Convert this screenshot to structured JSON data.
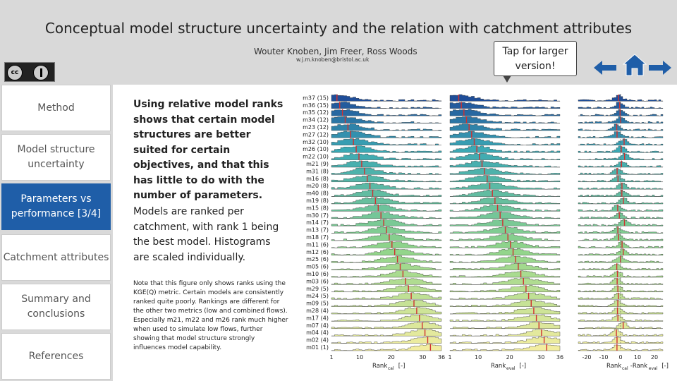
{
  "title": "Conceptual model structure uncertainty and the relation with catchment attributes",
  "authors": "Wouter Knoben, Jim Freer, Ross Woods",
  "email": "w.j.m.knoben@bristol.ac.uk",
  "license_badge": "cc",
  "tap_label": "Tap for larger version!",
  "nav": {
    "left_icon": "arrow-left-icon",
    "home_icon": "home-icon",
    "right_icon": "arrow-right-icon",
    "accent": "#1f5ea8"
  },
  "menu": [
    {
      "label": "Method",
      "active": false
    },
    {
      "label": "Model structure uncertainty",
      "active": false
    },
    {
      "label": "Parameters vs performance [3/4]",
      "active": true
    },
    {
      "label": "Catchment attributes",
      "active": false
    },
    {
      "label": "Summary and conclusions",
      "active": false
    },
    {
      "label": "References",
      "active": false
    }
  ],
  "main_text": "Using relative model ranks shows that certain model structures are better suited for certain objectives, and that this has little to do with the number of parameters.",
  "sub_text": "Models are ranked per catchment, with rank 1 being the best model. Histograms are scaled individually.",
  "note": "Note that this figure only shows ranks using the KGE(Q) metric. Certain models are consistently ranked quite poorly. Rankings are different for the other two metrics (low and combined flows). Especially m21, m22 and m26 rank much higher when used to simulate low flows, further showing that model structure strongly influences model capability.",
  "chart_data": {
    "type": "histogram-grid",
    "rows": [
      "m37 (15)",
      "m36 (15)",
      "m35 (12)",
      "m34 (12)",
      "m23 (12)",
      "m27 (12)",
      "m32 (10)",
      "m26 (10)",
      "m22 (10)",
      "m21 (9)",
      "m31 (8)",
      "m16 (8)",
      "m20 (8)",
      "m40 (8)",
      "m19 (8)",
      "m15 (8)",
      "m30 (7)",
      "m14 (7)",
      "m13 (7)",
      "m18 (7)",
      "m11 (6)",
      "m12 (6)",
      "m25 (6)",
      "m05 (6)",
      "m10 (6)",
      "m03 (6)",
      "m29 (5)",
      "m24 (5)",
      "m09 (5)",
      "m28 (4)",
      "m17 (4)",
      "m07 (4)",
      "m04 (4)",
      "m02 (4)",
      "m01 (1)"
    ],
    "panels": [
      {
        "xlabel": "Rank",
        "xlabel_sub": "cal",
        "xlabel_unit": "[-]",
        "ticks": [
          "1",
          "10",
          "20",
          "30",
          "36"
        ],
        "xlim": [
          1,
          36
        ]
      },
      {
        "xlabel": "Rank",
        "xlabel_sub": "eval",
        "xlabel_unit": "[-]",
        "ticks": [
          "1",
          "10",
          "20",
          "30",
          "36"
        ],
        "xlim": [
          1,
          36
        ]
      },
      {
        "xlabel": "Rank",
        "xlabel_sub": "cal",
        "xlabel_mid": "-Rank",
        "xlabel_sub2": "eval",
        "xlabel_unit": "[-]",
        "ticks": [
          "-20",
          "-10",
          "0",
          "10",
          "20"
        ],
        "xlim": [
          -25,
          25
        ]
      }
    ],
    "colors": {
      "top": "#1f4e99",
      "mid": "#3aa8b5",
      "low": "#8fd48a",
      "bottom": "#f2eda0",
      "marker": "#d03030"
    }
  }
}
